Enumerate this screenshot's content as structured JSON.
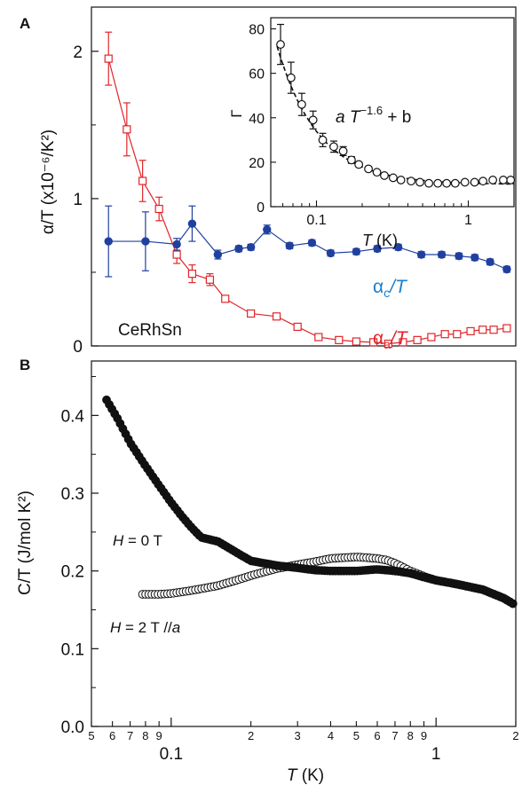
{
  "panels": {
    "A": {
      "label": "A"
    },
    "B": {
      "label": "B"
    }
  },
  "chart_data": [
    {
      "id": "A-main",
      "type": "line",
      "xscale": "log",
      "xlim": [
        0.05,
        2.0
      ],
      "ylim": [
        0,
        2.3
      ],
      "xlabel": "",
      "ylabel": "α/T (x10⁻⁶/K²)",
      "yticks": [
        "0",
        "1",
        "2"
      ],
      "ytick_values": [
        0,
        1,
        2
      ],
      "annotation": "CeRhSn",
      "colors": {
        "alpha_a": "#e0262b",
        "alpha_c": "#2040a0",
        "label_alpha_c": "#1a7fd0"
      },
      "series": [
        {
          "name": "αa/T",
          "label_main": "α",
          "label_sub": "a",
          "label_tail": "/T",
          "marker": "open-square",
          "x": [
            0.058,
            0.068,
            0.078,
            0.09,
            0.105,
            0.12,
            0.14,
            0.16,
            0.2,
            0.25,
            0.3,
            0.36,
            0.43,
            0.5,
            0.58,
            0.66,
            0.75,
            0.85,
            0.96,
            1.08,
            1.2,
            1.35,
            1.5,
            1.65,
            1.85
          ],
          "y": [
            1.95,
            1.47,
            1.12,
            0.93,
            0.62,
            0.49,
            0.45,
            0.32,
            0.22,
            0.2,
            0.13,
            0.06,
            0.04,
            0.03,
            0.025,
            0.015,
            0.025,
            0.04,
            0.06,
            0.08,
            0.08,
            0.1,
            0.11,
            0.11,
            0.12
          ],
          "err": [
            0.18,
            0.18,
            0.14,
            0.08,
            0.06,
            0.06,
            0.04,
            0,
            0,
            0,
            0,
            0,
            0,
            0,
            0,
            0,
            0,
            0,
            0,
            0,
            0,
            0,
            0,
            0,
            0
          ]
        },
        {
          "name": "αc/T",
          "label_main": "α",
          "label_sub": "c",
          "label_tail": "/T",
          "marker": "filled-circle",
          "x": [
            0.058,
            0.08,
            0.105,
            0.12,
            0.15,
            0.18,
            0.2,
            0.23,
            0.28,
            0.34,
            0.4,
            0.5,
            0.6,
            0.72,
            0.88,
            1.05,
            1.22,
            1.4,
            1.6,
            1.85
          ],
          "y": [
            0.71,
            0.71,
            0.69,
            0.83,
            0.62,
            0.66,
            0.67,
            0.79,
            0.68,
            0.7,
            0.63,
            0.64,
            0.66,
            0.67,
            0.62,
            0.62,
            0.61,
            0.6,
            0.57,
            0.52
          ],
          "err": [
            0.24,
            0.2,
            0.04,
            0.12,
            0.03,
            0.02,
            0.02,
            0.03,
            0.02,
            0.02,
            0.02,
            0.02,
            0.02,
            0.02,
            0.02,
            0.02,
            0.02,
            0.02,
            0.02,
            0.02
          ]
        }
      ]
    },
    {
      "id": "A-inset",
      "type": "scatter",
      "xscale": "log",
      "xlim": [
        0.05,
        2.0
      ],
      "ylim": [
        0,
        85
      ],
      "xlabel_italic": "T",
      "xlabel_rest": " (K)",
      "ylabel": "Γ",
      "xticks": [
        "0.1",
        "1"
      ],
      "xtick_values": [
        0.1,
        1
      ],
      "yticks": [
        "0",
        "20",
        "40",
        "60",
        "80"
      ],
      "ytick_values": [
        0,
        20,
        40,
        60,
        80
      ],
      "fit_label_a": "a T",
      "fit_label_exp": "−1.6",
      "fit_label_b": " + b",
      "fit": {
        "a": 0.6,
        "exp": -1.6,
        "b": 10
      },
      "series": [
        {
          "name": "Γ",
          "marker": "open-circle",
          "x": [
            0.058,
            0.068,
            0.08,
            0.095,
            0.11,
            0.13,
            0.15,
            0.17,
            0.19,
            0.22,
            0.25,
            0.28,
            0.32,
            0.36,
            0.42,
            0.48,
            0.55,
            0.63,
            0.72,
            0.82,
            0.95,
            1.1,
            1.25,
            1.45,
            1.7,
            1.9
          ],
          "y": [
            73,
            58,
            46,
            39,
            30,
            27,
            25,
            21,
            19,
            17,
            15.5,
            14,
            13,
            12,
            11.5,
            11,
            10.5,
            10.5,
            10.5,
            10.5,
            11,
            11,
            11.5,
            12,
            12,
            12
          ],
          "err": [
            9,
            7,
            5,
            4,
            3,
            2.5,
            2,
            1.5,
            1,
            0.8,
            0.6,
            0.5,
            0.5,
            0.5,
            0.5,
            0.5,
            0.5,
            0.5,
            0.5,
            0.5,
            0.5,
            0.5,
            0.5,
            0.5,
            0.5,
            0.5
          ]
        }
      ]
    },
    {
      "id": "B",
      "type": "scatter",
      "xscale": "log",
      "xlim": [
        0.05,
        2.0
      ],
      "ylim": [
        0,
        0.47
      ],
      "xlabel_italic": "T",
      "xlabel_rest": " (K)",
      "ylabel": "C/T (J/mol K²)",
      "yticks": [
        "0.0",
        "0.1",
        "0.2",
        "0.3",
        "0.4"
      ],
      "ytick_values": [
        0,
        0.1,
        0.2,
        0.3,
        0.4
      ],
      "xtick_major": [
        "0.1",
        "1"
      ],
      "xtick_major_values": [
        0.1,
        1
      ],
      "xtick_minor": [
        "5",
        "6",
        "7",
        "8",
        "9",
        "2",
        "3",
        "4",
        "5",
        "6",
        "7",
        "8",
        "9",
        "2"
      ],
      "xtick_minor_values": [
        0.05,
        0.06,
        0.07,
        0.08,
        0.09,
        0.2,
        0.3,
        0.4,
        0.5,
        0.6,
        0.7,
        0.8,
        0.9,
        2
      ],
      "series": [
        {
          "name": "H = 0 T",
          "label_italic": "H",
          "label_rest": " = 0 T",
          "marker": "filled-circle",
          "T_range": [
            0.057,
            1.95
          ],
          "control_T": [
            0.057,
            0.063,
            0.07,
            0.08,
            0.09,
            0.1,
            0.11,
            0.12,
            0.13,
            0.15,
            0.18,
            0.2,
            0.25,
            0.3,
            0.35,
            0.4,
            0.5,
            0.6,
            0.7,
            0.8,
            0.9,
            1.0,
            1.2,
            1.5,
            1.8,
            1.95
          ],
          "control_C": [
            0.42,
            0.395,
            0.365,
            0.335,
            0.31,
            0.288,
            0.27,
            0.255,
            0.243,
            0.238,
            0.222,
            0.213,
            0.207,
            0.204,
            0.201,
            0.2,
            0.2,
            0.202,
            0.2,
            0.197,
            0.192,
            0.188,
            0.183,
            0.176,
            0.165,
            0.158
          ]
        },
        {
          "name": "H = 2 T //a",
          "label_italic": "H",
          "label_mid": " = 2 T //",
          "label_tail_italic": "a",
          "marker": "open-circle",
          "T_range": [
            0.078,
            1.95
          ],
          "control_T": [
            0.078,
            0.09,
            0.1,
            0.12,
            0.15,
            0.18,
            0.2,
            0.25,
            0.3,
            0.35,
            0.4,
            0.45,
            0.5,
            0.55,
            0.6,
            0.65,
            0.7,
            0.8,
            0.9,
            1.0,
            1.2,
            1.5,
            1.8,
            1.95
          ],
          "control_C": [
            0.17,
            0.17,
            0.171,
            0.175,
            0.181,
            0.189,
            0.194,
            0.203,
            0.208,
            0.212,
            0.216,
            0.217,
            0.218,
            0.217,
            0.216,
            0.214,
            0.21,
            0.2,
            0.193,
            0.188,
            0.183,
            0.176,
            0.165,
            0.158
          ]
        }
      ]
    }
  ]
}
